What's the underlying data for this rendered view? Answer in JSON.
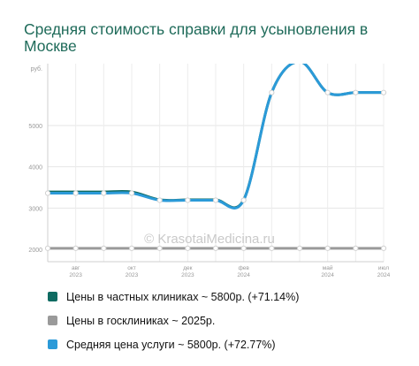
{
  "title": "Средняя стоимость справки для усыновления в Москве",
  "watermark": "© KrasotaiMedicina.ru",
  "chart_data": {
    "type": "line",
    "ylabel": "руб.",
    "yticks": [
      2000,
      3000,
      4000,
      5000
    ],
    "ylim": [
      1700,
      6500
    ],
    "xticks": [
      {
        "month": "авг",
        "year": "2023"
      },
      {
        "month": "окт",
        "year": "2023"
      },
      {
        "month": "дек",
        "year": "2023"
      },
      {
        "month": "фев",
        "year": "2024"
      },
      {
        "month": "май",
        "year": "2024"
      },
      {
        "month": "июл",
        "year": "2024"
      }
    ],
    "x": [
      "2023-07",
      "2023-08",
      "2023-09",
      "2023-10",
      "2023-11",
      "2023-12",
      "2024-01",
      "2024-02",
      "2024-03",
      "2024-04",
      "2024-05",
      "2024-06",
      "2024-07"
    ],
    "series": [
      {
        "name": "Цены в частных клиниках ~ 5800р. (+71.14%)",
        "color": "#0f6b62",
        "values": [
          3390,
          3390,
          3390,
          3390,
          3200,
          3200,
          3200,
          3200,
          5800,
          6550,
          5800,
          5800,
          5800
        ]
      },
      {
        "name": "Цены в госклиниках ~ 2025р.",
        "color": "#9a9a9a",
        "values": [
          2025,
          2025,
          2025,
          2025,
          2025,
          2025,
          2025,
          2025,
          2025,
          2025,
          2025,
          2025,
          2025
        ]
      },
      {
        "name": "Средняя цена услуги ~ 5800р. (+72.77%)",
        "color": "#2b9ad8",
        "values": [
          3360,
          3360,
          3360,
          3360,
          3190,
          3190,
          3190,
          3190,
          5800,
          6550,
          5800,
          5800,
          5800
        ]
      }
    ]
  }
}
